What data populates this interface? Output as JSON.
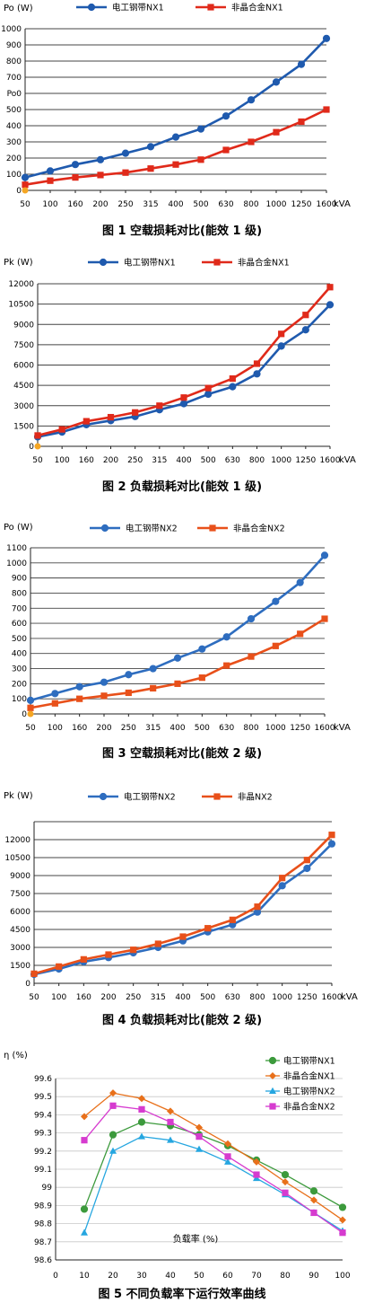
{
  "chart_data": [
    {
      "type": "line",
      "caption": "图 1  空载损耗对比(能效 1 级)",
      "ylabel": "Po (W)",
      "xunit": "kVA",
      "categories": [
        "50",
        "100",
        "160",
        "200",
        "250",
        "315",
        "400",
        "500",
        "630",
        "800",
        "1000",
        "1250",
        "1600"
      ],
      "ylim": [
        0,
        1000
      ],
      "yticks": [
        "0",
        "100",
        "200",
        "300",
        "400",
        "500",
        "600",
        "700",
        "800",
        "900",
        "1000"
      ],
      "ytick_labels": [
        "0",
        "100",
        "200",
        "300",
        "400",
        "500",
        "Po0",
        "700",
        "800",
        "900",
        "1000"
      ],
      "grid": true,
      "legend_position": "top",
      "series": [
        {
          "name": "电工钢带NX1",
          "color": "#1F5AAE",
          "marker": "circle",
          "values": [
            80,
            120,
            160,
            190,
            230,
            270,
            330,
            380,
            460,
            560,
            670,
            780,
            940
          ]
        },
        {
          "name": "非晶合金NX1",
          "color": "#E02A1A",
          "marker": "square",
          "values": [
            35,
            60,
            80,
            95,
            110,
            135,
            160,
            190,
            250,
            300,
            360,
            425,
            500
          ]
        }
      ],
      "origin_marker": true
    },
    {
      "type": "line",
      "caption": "图 2  负载损耗对比(能效 1 级)",
      "ylabel": "Pk (W)",
      "xunit": "kVA",
      "categories": [
        "50",
        "100",
        "160",
        "200",
        "250",
        "315",
        "400",
        "500",
        "630",
        "800",
        "1000",
        "1250",
        "1600"
      ],
      "ylim": [
        0,
        12000
      ],
      "yticks": [
        "0",
        "1500",
        "3000",
        "4500",
        "6000",
        "7500",
        "9000",
        "10500",
        "12000"
      ],
      "ytick_labels": [
        "0",
        "1500",
        "3000",
        "4500",
        "6000",
        "7500",
        "9000",
        "10500",
        "12000"
      ],
      "grid": true,
      "legend_position": "top",
      "series": [
        {
          "name": "电工钢带NX1",
          "color": "#1F5AAE",
          "marker": "circle",
          "values": [
            700,
            1050,
            1600,
            1900,
            2200,
            2700,
            3150,
            3850,
            4400,
            5350,
            7400,
            8600,
            10450
          ]
        },
        {
          "name": "非晶合金NX1",
          "color": "#E02A1A",
          "marker": "square",
          "values": [
            800,
            1250,
            1850,
            2150,
            2500,
            3000,
            3600,
            4300,
            5000,
            6100,
            8300,
            9700,
            11750
          ]
        }
      ],
      "origin_marker": true
    },
    {
      "type": "line",
      "caption": "图 3  空载损耗对比(能效 2 级)",
      "ylabel": "Po (W)",
      "xunit": "kVA",
      "categories": [
        "50",
        "100",
        "160",
        "200",
        "250",
        "315",
        "400",
        "500",
        "630",
        "800",
        "1000",
        "1250",
        "1600"
      ],
      "ylim": [
        0,
        1100
      ],
      "yticks": [
        "0",
        "100",
        "200",
        "300",
        "400",
        "500",
        "600",
        "700",
        "800",
        "900",
        "1000",
        "1100"
      ],
      "ytick_labels": [
        "0",
        "100",
        "200",
        "300",
        "400",
        "500",
        "600",
        "700",
        "800",
        "900",
        "1000",
        "1100"
      ],
      "grid": true,
      "legend_position": "top",
      "series": [
        {
          "name": "电工钢带NX2",
          "color": "#2E6DBF",
          "marker": "circle",
          "values": [
            90,
            135,
            180,
            210,
            260,
            300,
            370,
            430,
            510,
            630,
            745,
            870,
            1050
          ]
        },
        {
          "name": "非晶合金NX2",
          "color": "#E8501A",
          "marker": "square",
          "values": [
            40,
            70,
            100,
            120,
            140,
            170,
            200,
            240,
            320,
            380,
            450,
            530,
            630
          ]
        }
      ],
      "origin_marker": true
    },
    {
      "type": "line",
      "caption": "图 4  负载损耗对比(能效 2 级)",
      "ylabel": "Pk (W)",
      "xunit": "kVA",
      "categories": [
        "50",
        "100",
        "160",
        "200",
        "250",
        "315",
        "400",
        "500",
        "630",
        "800",
        "1000",
        "1250",
        "1600"
      ],
      "ylim": [
        0,
        13500
      ],
      "yticks": [
        "0",
        "1500",
        "3000",
        "4500",
        "6000",
        "7500",
        "9000",
        "10500",
        "12000",
        "13500"
      ],
      "ytick_labels": [
        "0",
        "1500",
        "3000",
        "4500",
        "6000",
        "7500",
        "9000",
        "10500",
        "12000",
        ""
      ],
      "grid": true,
      "legend_position": "top",
      "series": [
        {
          "name": "电工钢带NX2",
          "color": "#2E6DBF",
          "marker": "circle",
          "values": [
            750,
            1200,
            1800,
            2150,
            2550,
            3000,
            3550,
            4300,
            4900,
            5950,
            8150,
            9600,
            11650
          ]
        },
        {
          "name": "非晶NX2",
          "color": "#E8501A",
          "marker": "square",
          "values": [
            800,
            1400,
            2000,
            2400,
            2800,
            3300,
            3900,
            4600,
            5300,
            6400,
            8800,
            10300,
            12400
          ]
        }
      ],
      "origin_marker": false
    },
    {
      "type": "line",
      "caption": "图 5  不同负载率下运行效率曲线",
      "ylabel": "η (%)",
      "xlabel": "负载率 (%)",
      "x": [
        10,
        20,
        30,
        40,
        50,
        60,
        70,
        80,
        90,
        100
      ],
      "xlim": [
        0,
        100
      ],
      "xticks": [
        "0",
        "10",
        "20",
        "30",
        "40",
        "50",
        "60",
        "70",
        "80",
        "90",
        "100"
      ],
      "ylim": [
        98.6,
        99.6
      ],
      "yticks": [
        "98.6",
        "98.7",
        "98.8",
        "98.9",
        "99",
        "99.1",
        "99.2",
        "99.3",
        "99.4",
        "99.5",
        "99.6"
      ],
      "grid": true,
      "legend_position": "top-right",
      "series": [
        {
          "name": "电工钢带NX1",
          "color": "#3C9A3C",
          "marker": "circle",
          "values": [
            98.88,
            99.29,
            99.36,
            99.34,
            99.29,
            99.23,
            99.15,
            99.07,
            98.98,
            98.89
          ]
        },
        {
          "name": "非晶合金NX1",
          "color": "#E8701A",
          "marker": "diamond",
          "values": [
            99.39,
            99.52,
            99.49,
            99.42,
            99.33,
            99.24,
            99.14,
            99.03,
            98.93,
            98.82
          ]
        },
        {
          "name": "电工钢带NX2",
          "color": "#25A6E0",
          "marker": "triangle",
          "values": [
            98.75,
            99.2,
            99.28,
            99.26,
            99.21,
            99.14,
            99.05,
            98.96,
            98.86,
            98.76
          ]
        },
        {
          "name": "非晶合金NX2",
          "color": "#D63BCF",
          "marker": "square",
          "values": [
            99.26,
            99.45,
            99.43,
            99.36,
            99.28,
            99.17,
            99.07,
            98.97,
            98.86,
            98.75
          ]
        }
      ]
    }
  ]
}
